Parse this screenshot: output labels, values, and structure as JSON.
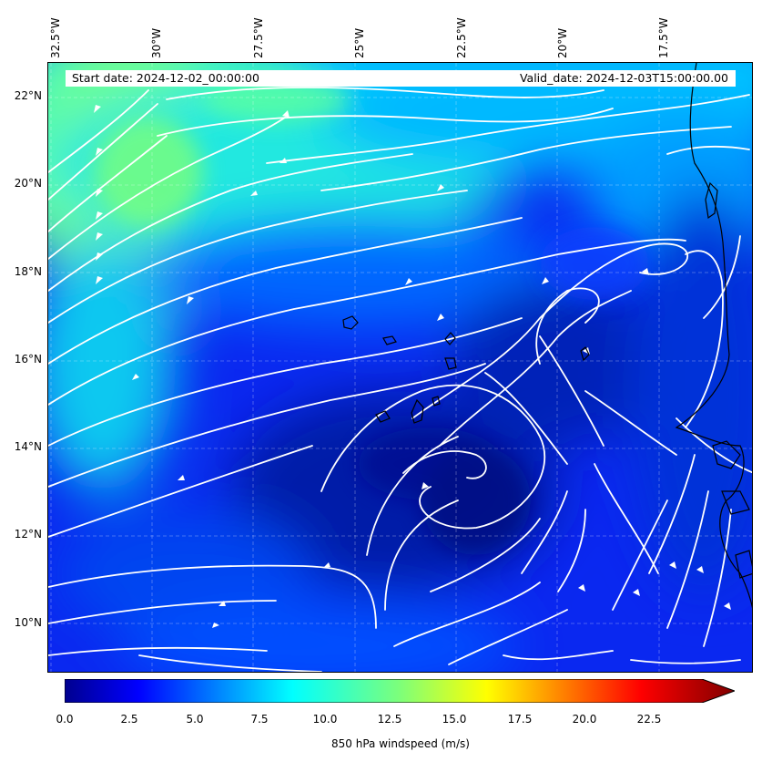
{
  "header": {
    "start_date": "Start date: 2024-12-02_00:00:00",
    "valid_date": "Valid_date: 2024-12-03T15:00:00.00"
  },
  "axes": {
    "lon_labels": [
      "32.5°W",
      "30°W",
      "27.5°W",
      "25°W",
      "22.5°W",
      "20°W",
      "17.5°W"
    ],
    "lat_labels": [
      "22°N",
      "20°N",
      "18°N",
      "16°N",
      "14°N",
      "12°N",
      "10°N"
    ]
  },
  "colorbar": {
    "label": "850 hPa windspeed (m/s)",
    "ticks": [
      "0.0",
      "2.5",
      "5.0",
      "7.5",
      "10.0",
      "12.5",
      "15.0",
      "17.5",
      "20.0",
      "22.5"
    ],
    "min": 0,
    "max": 25,
    "extend": "max",
    "colormap": "jet"
  },
  "map": {
    "projection": "PlateCarree",
    "lon_range": [
      -32.7,
      -14.8
    ],
    "lat_range": [
      8.8,
      22.8
    ],
    "field": "850 hPa windspeed",
    "overlay": "white streamlines",
    "colors": {
      "streamline": "#ffffff",
      "coast": "#000000",
      "low_wind": "#0010d0",
      "high_wind": "#7dff7a"
    }
  }
}
